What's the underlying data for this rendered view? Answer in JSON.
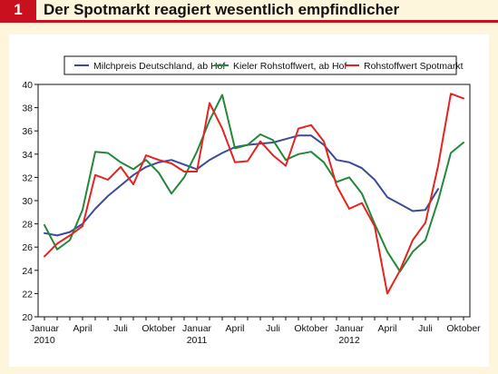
{
  "header": {
    "number": "1",
    "title": "Der Spotmarkt reagiert wesentlich empfindlicher"
  },
  "colors": {
    "accent": "#c8101e",
    "background": "#fdf5dc",
    "panel": "#ffffff"
  },
  "chart_data": {
    "type": "line",
    "title": "Der Spotmarkt reagiert wesentlich empfindlicher",
    "xlabel": "",
    "ylabel": "",
    "ylim": [
      20,
      40
    ],
    "yticks": [
      20,
      22,
      24,
      26,
      28,
      30,
      32,
      34,
      36,
      38,
      40
    ],
    "grid": false,
    "legend_position": "top",
    "x": [
      "2010-01",
      "2010-02",
      "2010-03",
      "2010-04",
      "2010-05",
      "2010-06",
      "2010-07",
      "2010-08",
      "2010-09",
      "2010-10",
      "2010-11",
      "2010-12",
      "2011-01",
      "2011-02",
      "2011-03",
      "2011-04",
      "2011-05",
      "2011-06",
      "2011-07",
      "2011-08",
      "2011-09",
      "2011-10",
      "2011-11",
      "2011-12",
      "2012-01",
      "2012-02",
      "2012-03",
      "2012-04",
      "2012-05",
      "2012-06",
      "2012-07",
      "2012-08",
      "2012-09",
      "2012-10"
    ],
    "x_ticks": [
      {
        "index": 0,
        "label": "Januar",
        "sublabel": "2010"
      },
      {
        "index": 3,
        "label": "April"
      },
      {
        "index": 6,
        "label": "Juli"
      },
      {
        "index": 9,
        "label": "Oktober"
      },
      {
        "index": 12,
        "label": "Januar",
        "sublabel": "2011"
      },
      {
        "index": 15,
        "label": "April"
      },
      {
        "index": 18,
        "label": "Juli"
      },
      {
        "index": 21,
        "label": "Oktober"
      },
      {
        "index": 24,
        "label": "Januar",
        "sublabel": "2012"
      },
      {
        "index": 27,
        "label": "April"
      },
      {
        "index": 30,
        "label": "Juli"
      },
      {
        "index": 33,
        "label": "Oktober"
      }
    ],
    "series": [
      {
        "name": "Milchpreis Deutschland, ab Hof",
        "color": "#3c4a9c",
        "values": [
          27.2,
          27.0,
          27.3,
          28.0,
          29.3,
          30.4,
          31.3,
          32.2,
          32.9,
          33.3,
          33.5,
          33.1,
          32.7,
          33.5,
          34.1,
          34.6,
          34.8,
          34.9,
          35.0,
          35.3,
          35.6,
          35.6,
          34.8,
          33.5,
          33.3,
          32.8,
          31.8,
          30.3,
          29.7,
          29.1,
          29.2,
          31.0,
          null,
          null
        ]
      },
      {
        "name": "Kieler Rohstoffwert, ab Hof",
        "color": "#22883a",
        "values": [
          27.9,
          25.8,
          26.6,
          29.2,
          34.2,
          34.1,
          33.3,
          32.7,
          33.5,
          32.4,
          30.6,
          32.0,
          34.2,
          36.9,
          39.1,
          34.5,
          34.8,
          35.7,
          35.2,
          33.5,
          34.0,
          34.2,
          33.3,
          31.6,
          32.0,
          30.6,
          28.0,
          25.6,
          23.9,
          25.6,
          26.6,
          30.0,
          34.1,
          35.0
        ]
      },
      {
        "name": "Rohstoffwert Spotmarkt",
        "color": "#e52421",
        "values": [
          25.2,
          26.3,
          27.0,
          27.8,
          32.2,
          31.8,
          32.9,
          31.4,
          33.9,
          33.5,
          33.2,
          32.5,
          32.5,
          38.4,
          36.2,
          33.3,
          33.4,
          35.1,
          33.9,
          33.0,
          36.2,
          36.5,
          35.1,
          31.3,
          29.3,
          29.8,
          27.8,
          22.0,
          24.0,
          26.6,
          28.1,
          33.0,
          39.2,
          38.8
        ]
      }
    ]
  }
}
